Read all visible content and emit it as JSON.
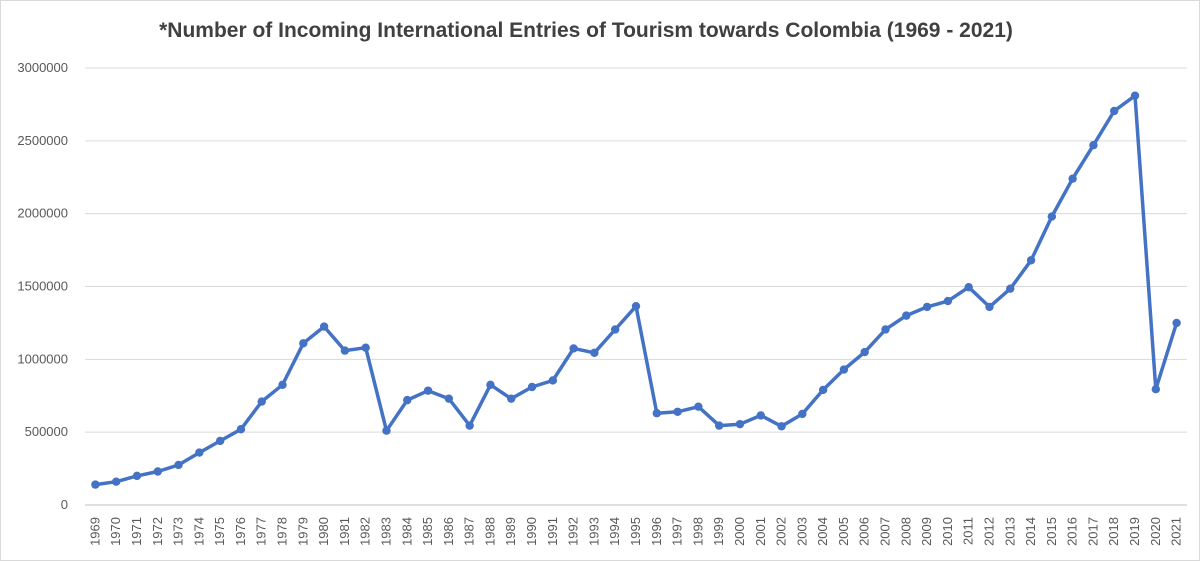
{
  "chart_data": {
    "type": "line",
    "title": "*Number of Incoming International Entries of Tourism towards Colombia (1969 - 2021)",
    "xlabel": "",
    "ylabel": "",
    "ylim": [
      0,
      3000000
    ],
    "yticks": [
      "0",
      "500000",
      "1000000",
      "1500000",
      "2000000",
      "2500000",
      "3000000"
    ],
    "grid": "horizontal",
    "legend": "none",
    "series_color": "#4472C4",
    "categories": [
      "1969",
      "1970",
      "1971",
      "1972",
      "1973",
      "1974",
      "1975",
      "1976",
      "1977",
      "1978",
      "1979",
      "1980",
      "1981",
      "1982",
      "1983",
      "1984",
      "1985",
      "1986",
      "1987",
      "1988",
      "1989",
      "1990",
      "1991",
      "1992",
      "1993",
      "1994",
      "1995",
      "1996",
      "1997",
      "1998",
      "1999",
      "2000",
      "2001",
      "2002",
      "2003",
      "2004",
      "2005",
      "2006",
      "2007",
      "2008",
      "2009",
      "2010",
      "2011",
      "2012",
      "2013",
      "2014",
      "2015",
      "2016",
      "2017",
      "2018",
      "2019",
      "2020",
      "2021"
    ],
    "series": [
      {
        "values": [
          140000,
          160000,
          200000,
          230000,
          275000,
          360000,
          440000,
          520000,
          710000,
          825000,
          1110000,
          1225000,
          1060000,
          1080000,
          510000,
          720000,
          785000,
          730000,
          545000,
          825000,
          730000,
          810000,
          855000,
          1075000,
          1045000,
          1205000,
          1365000,
          630000,
          640000,
          675000,
          545000,
          555000,
          615000,
          540000,
          625000,
          790000,
          930000,
          1050000,
          1205000,
          1300000,
          1360000,
          1400000,
          1495000,
          1360000,
          1485000,
          1680000,
          1980000,
          2240000,
          2470000,
          2705000,
          2810000,
          795000,
          1250000
        ]
      }
    ]
  }
}
